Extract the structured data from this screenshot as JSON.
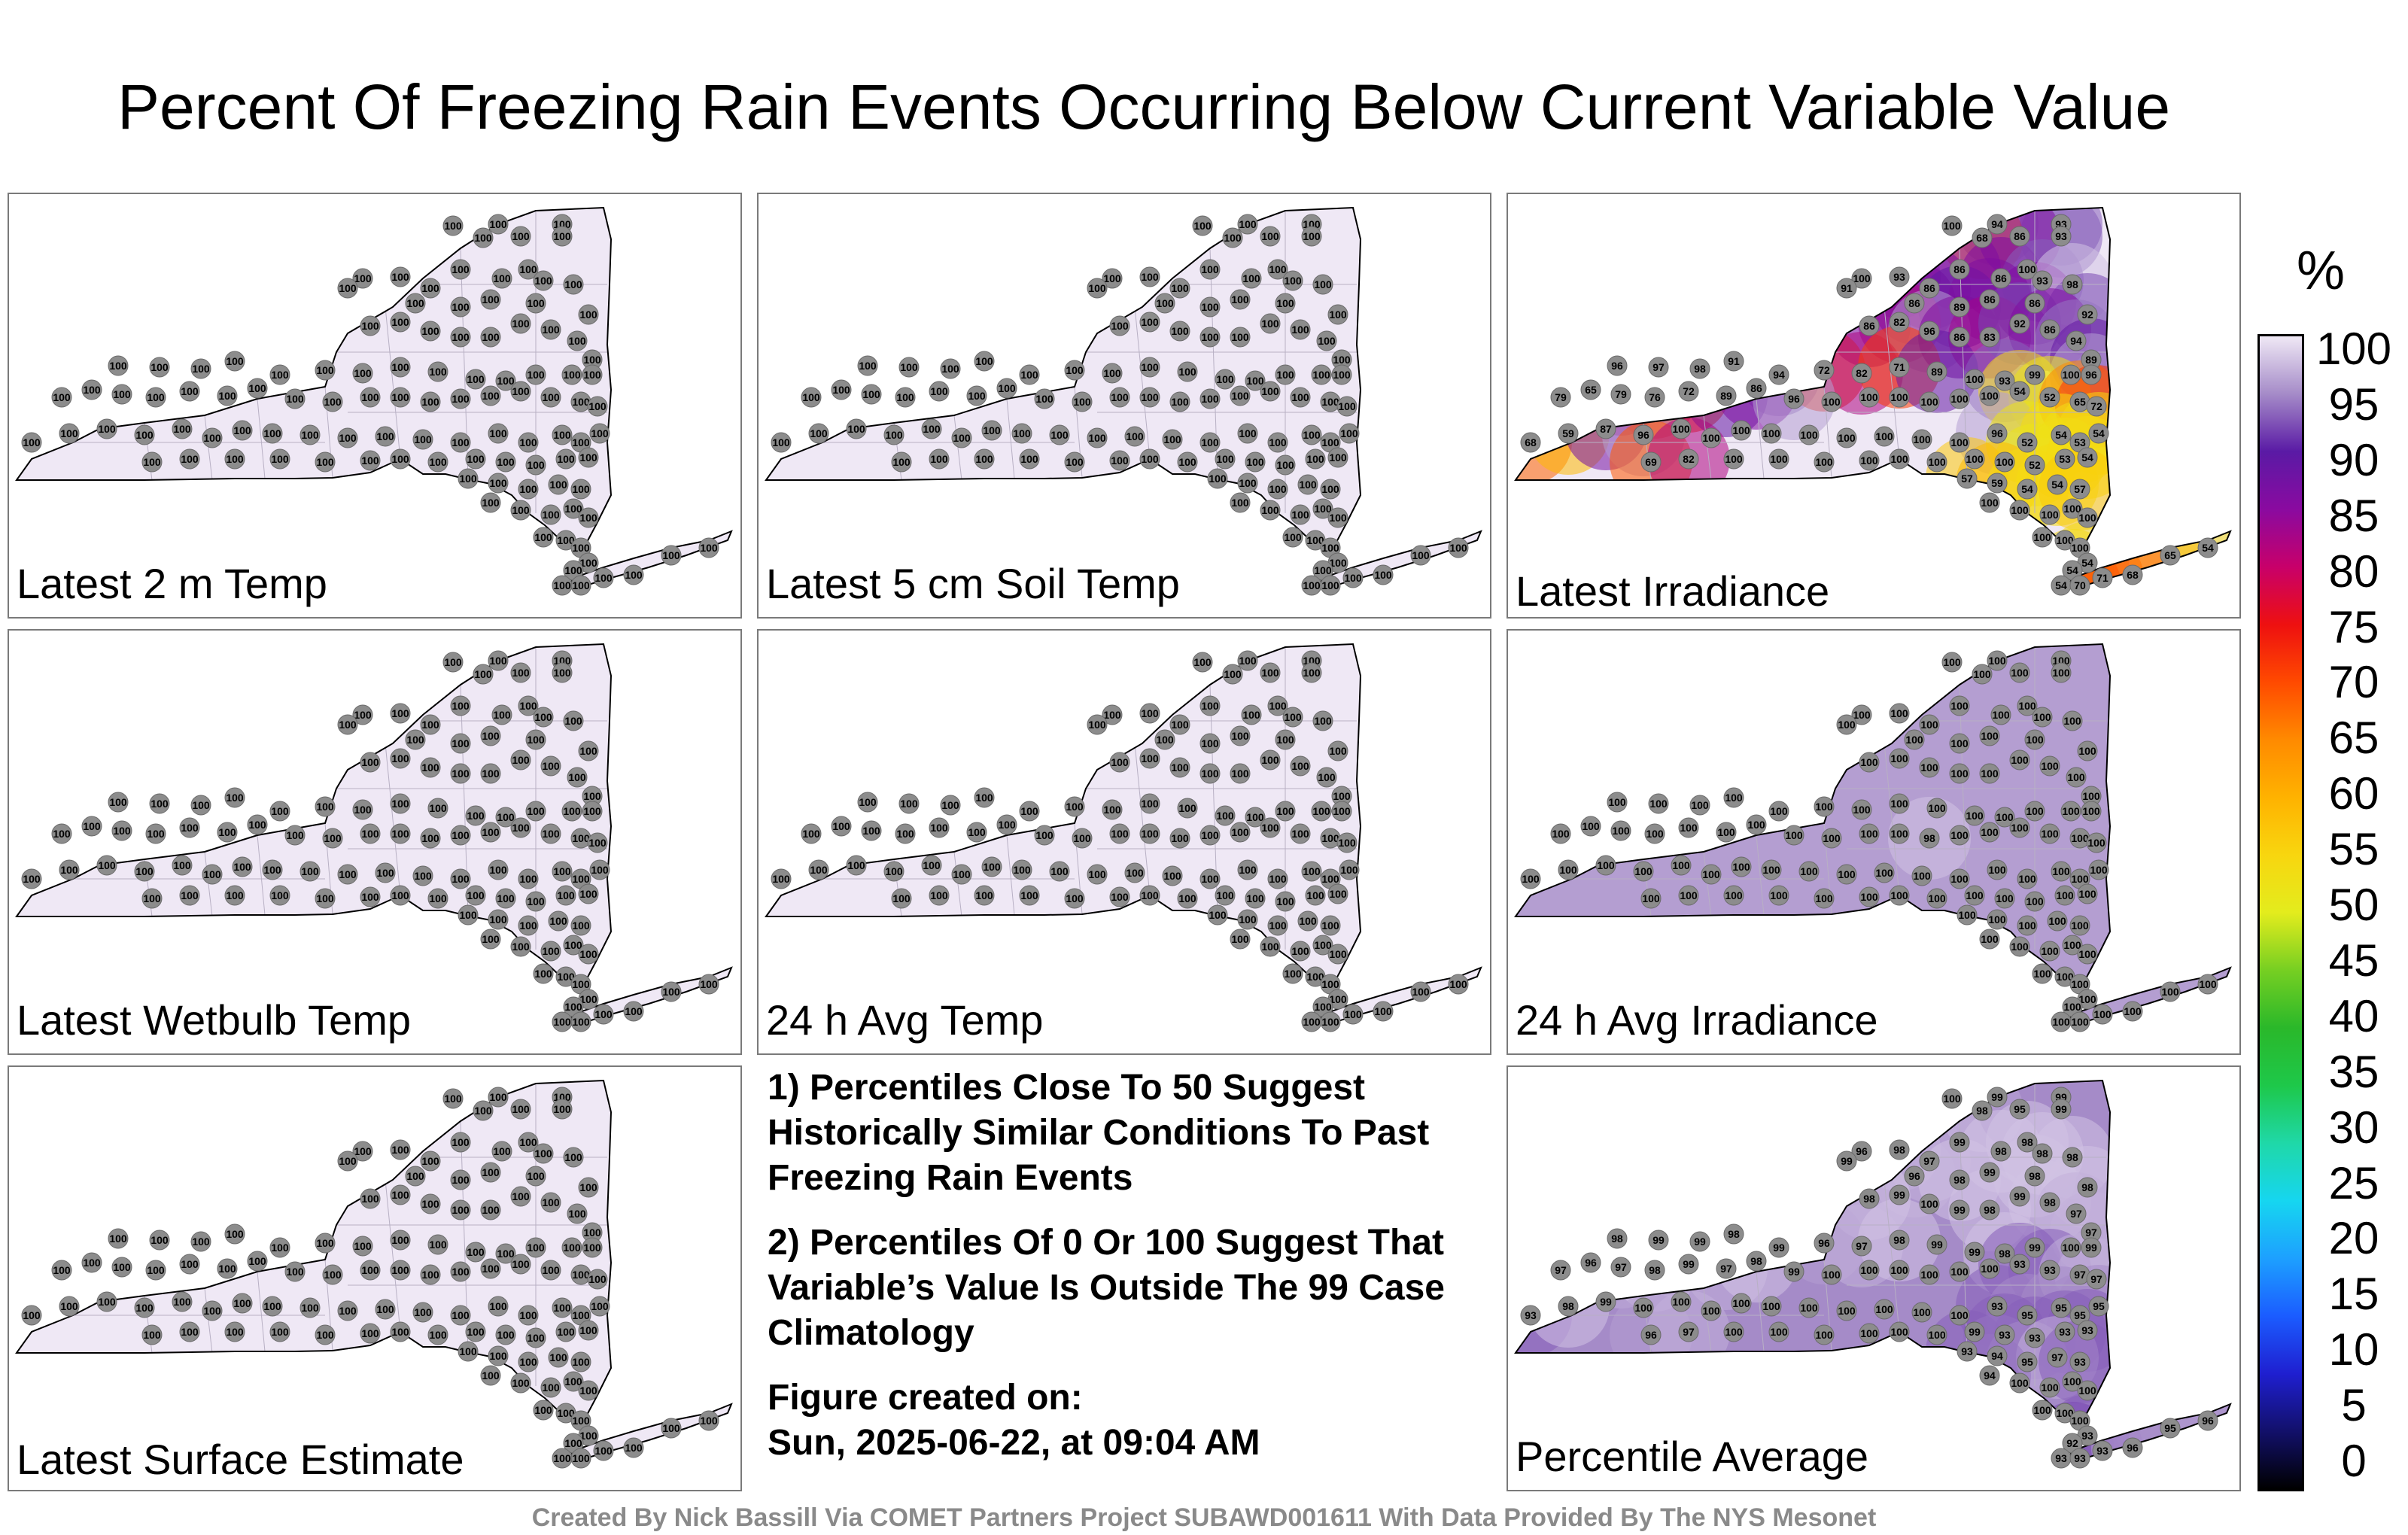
{
  "title": "Percent Of Freezing Rain Events Occurring Below Current Variable Value",
  "colorbar": {
    "unit": "%",
    "ticks": [
      "100",
      "95",
      "90",
      "85",
      "80",
      "75",
      "70",
      "65",
      "60",
      "55",
      "50",
      "45",
      "40",
      "35",
      "30",
      "25",
      "20",
      "15",
      "10",
      "5",
      "0"
    ],
    "stops": [
      {
        "value": 0,
        "color": "#000000"
      },
      {
        "value": 5,
        "color": "#12106a"
      },
      {
        "value": 10,
        "color": "#1f1fd0"
      },
      {
        "value": 15,
        "color": "#1b5cff"
      },
      {
        "value": 20,
        "color": "#1da0ff"
      },
      {
        "value": 25,
        "color": "#16d6f0"
      },
      {
        "value": 30,
        "color": "#1fd8a8"
      },
      {
        "value": 35,
        "color": "#1ec84a"
      },
      {
        "value": 40,
        "color": "#2ab82a"
      },
      {
        "value": 45,
        "color": "#76cf22"
      },
      {
        "value": 50,
        "color": "#e3ec1d"
      },
      {
        "value": 55,
        "color": "#f8d60f"
      },
      {
        "value": 60,
        "color": "#ffb200"
      },
      {
        "value": 65,
        "color": "#ff8a00"
      },
      {
        "value": 70,
        "color": "#ff4a00"
      },
      {
        "value": 75,
        "color": "#ee1010"
      },
      {
        "value": 80,
        "color": "#c8006a"
      },
      {
        "value": 85,
        "color": "#8a0aa0"
      },
      {
        "value": 90,
        "color": "#5a1aa5"
      },
      {
        "value": 95,
        "color": "#a58bc8"
      },
      {
        "value": 100,
        "color": "#efe8f5"
      }
    ]
  },
  "panels": [
    {
      "label": "Latest 2 m Temp",
      "field_value": 100,
      "values": [
        100,
        100,
        100,
        100,
        100,
        100,
        100,
        100,
        100,
        100,
        100,
        100,
        100,
        100,
        100,
        100,
        100,
        100,
        100,
        100,
        100,
        100,
        100,
        100,
        100,
        100,
        100,
        100,
        100,
        100,
        100,
        100,
        100,
        100,
        100,
        100,
        100,
        100,
        100,
        100,
        100,
        100,
        100,
        100,
        100,
        100,
        100,
        100,
        100,
        100,
        100,
        100,
        100,
        100,
        100,
        100,
        100,
        100,
        100,
        100,
        100,
        100,
        100,
        100,
        100,
        100,
        100,
        100,
        100,
        100,
        100,
        100,
        100,
        100,
        100,
        100,
        100,
        100,
        100,
        100,
        100,
        100,
        100,
        100,
        100,
        100,
        100,
        100,
        100,
        100,
        100,
        100,
        100,
        100,
        100,
        100,
        100,
        100,
        100,
        100,
        100,
        100,
        100,
        100,
        100,
        100,
        100,
        100,
        100,
        100,
        100,
        100,
        100,
        100,
        100,
        100,
        100,
        100,
        100,
        100,
        100,
        100,
        100,
        100
      ]
    },
    {
      "label": "Latest 5 cm Soil Temp",
      "field_value": 100,
      "values": [
        100,
        100,
        100,
        100,
        100,
        100,
        100,
        100,
        100,
        100,
        100,
        100,
        100,
        100,
        100,
        100,
        100,
        100,
        100,
        100,
        100,
        100,
        100,
        100,
        100,
        100,
        100,
        100,
        100,
        100,
        100,
        100,
        100,
        100,
        100,
        100,
        100,
        100,
        100,
        100,
        100,
        100,
        100,
        100,
        100,
        100,
        100,
        100,
        100,
        100,
        100,
        100,
        100,
        100,
        100,
        100,
        100,
        100,
        100,
        100,
        100,
        100,
        100,
        100,
        100,
        100,
        100,
        100,
        100,
        100,
        100,
        100,
        100,
        100,
        100,
        100,
        100,
        100,
        100,
        100,
        100,
        100,
        100,
        100,
        100,
        100,
        100,
        100,
        100,
        100,
        100,
        100,
        100,
        100,
        100,
        100,
        100,
        100,
        100,
        100,
        100,
        100,
        100,
        100,
        100,
        100,
        100,
        100,
        100,
        100,
        100,
        100,
        100,
        100,
        100,
        100,
        100,
        100,
        100,
        100,
        100,
        100,
        100,
        100
      ]
    },
    {
      "label": "Latest Irradiance",
      "field_value": 100,
      "values": [
        100,
        94,
        93,
        93,
        68,
        86,
        100,
        93,
        86,
        86,
        86,
        100,
        93,
        91,
        86,
        89,
        86,
        86,
        98,
        92,
        82,
        86,
        96,
        86,
        83,
        92,
        86,
        94,
        89,
        96,
        97,
        98,
        91,
        94,
        72,
        82,
        71,
        89,
        100,
        93,
        99,
        100,
        96,
        79,
        65,
        79,
        76,
        72,
        89,
        86,
        96,
        100,
        100,
        100,
        100,
        100,
        100,
        54,
        52,
        65,
        72,
        68,
        59,
        87,
        96,
        100,
        100,
        100,
        100,
        100,
        100,
        100,
        100,
        100,
        96,
        52,
        54,
        53,
        54,
        69,
        82,
        100,
        100,
        100,
        100,
        100,
        100,
        100,
        100,
        52,
        53,
        54,
        57,
        59,
        54,
        54,
        57,
        100,
        100,
        100,
        100,
        100,
        100,
        100,
        100,
        54,
        54,
        54,
        70,
        71,
        68,
        65,
        54,
        100,
        100,
        100,
        100,
        100,
        100,
        100,
        100,
        100,
        100,
        100,
        100,
        100
      ]
    },
    {
      "label": "Latest Wetbulb Temp",
      "field_value": 100,
      "values": [
        100,
        100,
        100,
        100,
        100,
        100,
        100,
        100,
        100,
        100,
        100,
        100,
        100,
        100,
        100,
        100,
        100,
        100,
        100,
        100,
        100,
        100,
        100,
        100,
        100,
        100,
        100,
        100,
        100,
        100,
        100,
        100,
        100,
        100,
        100,
        100,
        100,
        100,
        100,
        100,
        100,
        100,
        100,
        100,
        100,
        100,
        100,
        100,
        100,
        100,
        100,
        100,
        100,
        100,
        100,
        100,
        100,
        100,
        100,
        100,
        100,
        100,
        100,
        100,
        100,
        100,
        100,
        100,
        100,
        100,
        100,
        100,
        100,
        100,
        100,
        100,
        100,
        100,
        100,
        100,
        100,
        100,
        100,
        100,
        100,
        100,
        100,
        100,
        100,
        100,
        100,
        100,
        100,
        100,
        100,
        100,
        100,
        100,
        100,
        100,
        100,
        100,
        100,
        100,
        100,
        100,
        100,
        100,
        100,
        100,
        100,
        100,
        100,
        100,
        100,
        100,
        100,
        100,
        100,
        100,
        100,
        100,
        100,
        100
      ]
    },
    {
      "label": "24 h Avg Temp",
      "field_value": 100,
      "values": [
        100,
        100,
        100,
        100,
        100,
        100,
        100,
        100,
        100,
        100,
        100,
        100,
        100,
        100,
        100,
        100,
        100,
        100,
        100,
        100,
        100,
        100,
        100,
        100,
        100,
        100,
        100,
        100,
        100,
        100,
        100,
        100,
        100,
        100,
        100,
        100,
        100,
        100,
        100,
        100,
        100,
        100,
        100,
        100,
        100,
        100,
        100,
        100,
        100,
        100,
        100,
        100,
        100,
        100,
        100,
        100,
        100,
        100,
        100,
        100,
        100,
        100,
        100,
        100,
        100,
        100,
        100,
        100,
        100,
        100,
        100,
        100,
        100,
        100,
        100,
        100,
        100,
        100,
        100,
        100,
        100,
        100,
        100,
        100,
        100,
        100,
        100,
        100,
        100,
        100,
        100,
        100,
        100,
        100,
        100,
        100,
        100,
        100,
        100,
        100,
        100,
        100,
        100,
        100,
        100,
        100,
        100,
        100,
        100,
        100,
        100,
        100,
        100,
        100,
        100,
        100,
        100,
        100,
        100,
        100,
        100,
        100,
        100,
        100
      ]
    },
    {
      "label": "24 h Avg Irradiance",
      "field_value": 96,
      "values": [
        100,
        100,
        100,
        100,
        100,
        100,
        100,
        100,
        100,
        100,
        100,
        100,
        100,
        100,
        100,
        100,
        100,
        100,
        100,
        100,
        100,
        100,
        100,
        100,
        100,
        100,
        100,
        100,
        100,
        100,
        100,
        100,
        100,
        100,
        100,
        100,
        100,
        100,
        100,
        100,
        100,
        100,
        100,
        100,
        100,
        100,
        100,
        100,
        100,
        100,
        100,
        100,
        100,
        100,
        98,
        100,
        100,
        100,
        100,
        100,
        100,
        100,
        100,
        100,
        100,
        100,
        100,
        100,
        100,
        100,
        100,
        100,
        100,
        100,
        100,
        100,
        100,
        100,
        100,
        100,
        100,
        100,
        100,
        100,
        100,
        100,
        100,
        100,
        100,
        100,
        100,
        100,
        100,
        100,
        100,
        100,
        100,
        100,
        100,
        100,
        100,
        100,
        100,
        100,
        100,
        100,
        100,
        100,
        100,
        100,
        100,
        100,
        100,
        100,
        100,
        100,
        100,
        100,
        100,
        100,
        100,
        100,
        100,
        100
      ]
    },
    {
      "label": "Latest Surface Estimate",
      "field_value": 100,
      "values": [
        100,
        100,
        100,
        100,
        100,
        100,
        100,
        100,
        100,
        100,
        100,
        100,
        100,
        100,
        100,
        100,
        100,
        100,
        100,
        100,
        100,
        100,
        100,
        100,
        100,
        100,
        100,
        100,
        100,
        100,
        100,
        100,
        100,
        100,
        100,
        100,
        100,
        100,
        100,
        100,
        100,
        100,
        100,
        100,
        100,
        100,
        100,
        100,
        100,
        100,
        100,
        100,
        100,
        100,
        100,
        100,
        100,
        100,
        100,
        100,
        100,
        100,
        100,
        100,
        100,
        100,
        100,
        100,
        100,
        100,
        100,
        100,
        100,
        100,
        100,
        100,
        100,
        100,
        100,
        100,
        100,
        100,
        100,
        100,
        100,
        100,
        100,
        100,
        100,
        100,
        100,
        100,
        100,
        100,
        100,
        100,
        100,
        100,
        100,
        100,
        100,
        100,
        100,
        100,
        100,
        100,
        100,
        100,
        100,
        100,
        100,
        100,
        100,
        100,
        100,
        100,
        100,
        100,
        100,
        100,
        100,
        100,
        100,
        100
      ]
    },
    {
      "label": "Percentile Average",
      "field_value": 95,
      "values": [
        100,
        99,
        99,
        99,
        98,
        95,
        96,
        98,
        96,
        99,
        98,
        98,
        98,
        99,
        97,
        98,
        99,
        98,
        98,
        98,
        99,
        98,
        100,
        99,
        98,
        99,
        98,
        97,
        97,
        98,
        99,
        99,
        98,
        99,
        96,
        97,
        98,
        99,
        99,
        98,
        99,
        100,
        99,
        97,
        96,
        97,
        98,
        99,
        97,
        98,
        99,
        100,
        100,
        100,
        100,
        100,
        100,
        93,
        93,
        97,
        97,
        93,
        98,
        99,
        100,
        100,
        100,
        100,
        100,
        100,
        100,
        100,
        100,
        100,
        93,
        95,
        95,
        95,
        95,
        96,
        97,
        100,
        100,
        100,
        100,
        100,
        100,
        99,
        93,
        93,
        93,
        93,
        93,
        94,
        95,
        97,
        93,
        94,
        100,
        100,
        100,
        100,
        100,
        100,
        100,
        93,
        92,
        93,
        93,
        93,
        96,
        95,
        96,
        99,
        100,
        100,
        100,
        100,
        100,
        100,
        100,
        100,
        100,
        100,
        100,
        100
      ]
    }
  ],
  "notes": {
    "note1": "1) Percentiles Close To 50 Suggest Historically Similar Conditions To Past Freezing Rain Events",
    "note2": "2) Percentiles Of 0 Or 100 Suggest That Variable’s Value Is Outside The 99 Case Climatology",
    "created_label": "Figure created on:",
    "created_date": "Sun, 2025-06-22, at 09:04 AM"
  },
  "footer": "Created By Nick Bassill Via COMET Partners Project SUBAWD001611 With Data Provided By The NYS Mesonet"
}
